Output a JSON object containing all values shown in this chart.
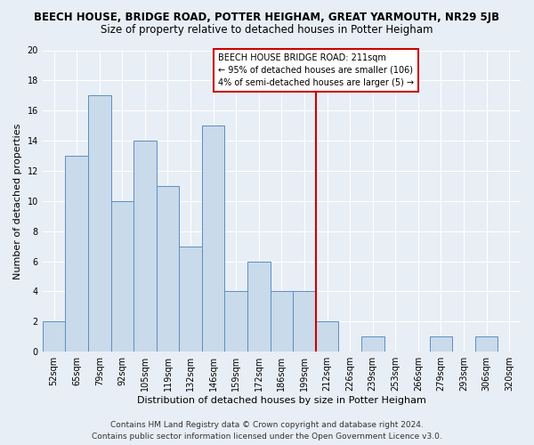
{
  "title": "BEECH HOUSE, BRIDGE ROAD, POTTER HEIGHAM, GREAT YARMOUTH, NR29 5JB",
  "subtitle": "Size of property relative to detached houses in Potter Heigham",
  "xlabel": "Distribution of detached houses by size in Potter Heigham",
  "ylabel": "Number of detached properties",
  "bar_labels": [
    "52sqm",
    "65sqm",
    "79sqm",
    "92sqm",
    "105sqm",
    "119sqm",
    "132sqm",
    "146sqm",
    "159sqm",
    "172sqm",
    "186sqm",
    "199sqm",
    "212sqm",
    "226sqm",
    "239sqm",
    "253sqm",
    "266sqm",
    "279sqm",
    "293sqm",
    "306sqm",
    "320sqm"
  ],
  "bar_values": [
    2,
    13,
    17,
    10,
    14,
    11,
    7,
    15,
    4,
    6,
    4,
    4,
    2,
    0,
    1,
    0,
    0,
    1,
    0,
    1,
    0
  ],
  "bar_color": "#c9daea",
  "bar_edge_color": "#5b8ec4",
  "reference_line_color": "#cc0000",
  "annotation_line1": "BEECH HOUSE BRIDGE ROAD: 211sqm",
  "annotation_line2": "← 95% of detached houses are smaller (106)",
  "annotation_line3": "4% of semi-detached houses are larger (5) →",
  "ylim": [
    0,
    20
  ],
  "yticks": [
    0,
    2,
    4,
    6,
    8,
    10,
    12,
    14,
    16,
    18,
    20
  ],
  "footer_line1": "Contains HM Land Registry data © Crown copyright and database right 2024.",
  "footer_line2": "Contains public sector information licensed under the Open Government Licence v3.0.",
  "background_color": "#e8eef5",
  "grid_color": "#ffffff",
  "title_fontsize": 8.5,
  "subtitle_fontsize": 8.5,
  "axis_label_fontsize": 8,
  "tick_fontsize": 7,
  "annotation_fontsize": 7,
  "footer_fontsize": 6.5,
  "ref_bar_index": 12
}
